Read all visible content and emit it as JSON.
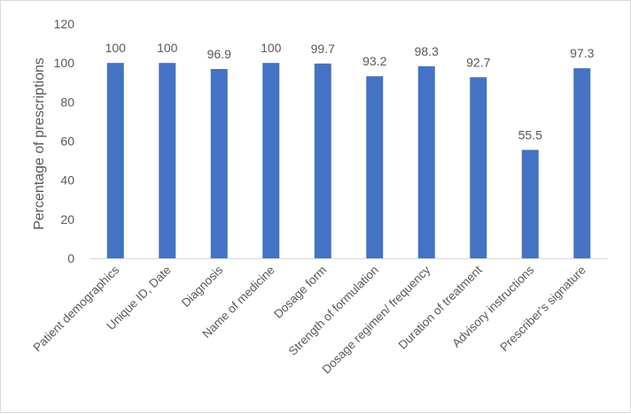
{
  "chart_data": {
    "type": "bar",
    "title": "",
    "xlabel": "",
    "ylabel": "Percentage of prescriptions",
    "categories": [
      "Patient demographics",
      "Unique ID, Date",
      "Diagnosis",
      "Name of medicine",
      "Dosage form",
      "Strength of formulation",
      "Dosage regimen/ frequency",
      "Duration of treatment",
      "Advisory instructions",
      "Prescriber's signature"
    ],
    "values": [
      100,
      100,
      96.9,
      100,
      99.7,
      93.2,
      98.3,
      92.7,
      55.5,
      97.3
    ],
    "data_labels": [
      "100",
      "100",
      "96.9",
      "100",
      "99.7",
      "93.2",
      "98.3",
      "92.7",
      "55.5",
      "97.3"
    ],
    "ylim": [
      0,
      120
    ],
    "yticks": [
      0,
      20,
      40,
      60,
      80,
      100,
      120
    ],
    "grid": false,
    "legend": "none",
    "bar_color": "#4472C4",
    "axis_color": "#d9d9d9",
    "text_color": "#595959"
  }
}
